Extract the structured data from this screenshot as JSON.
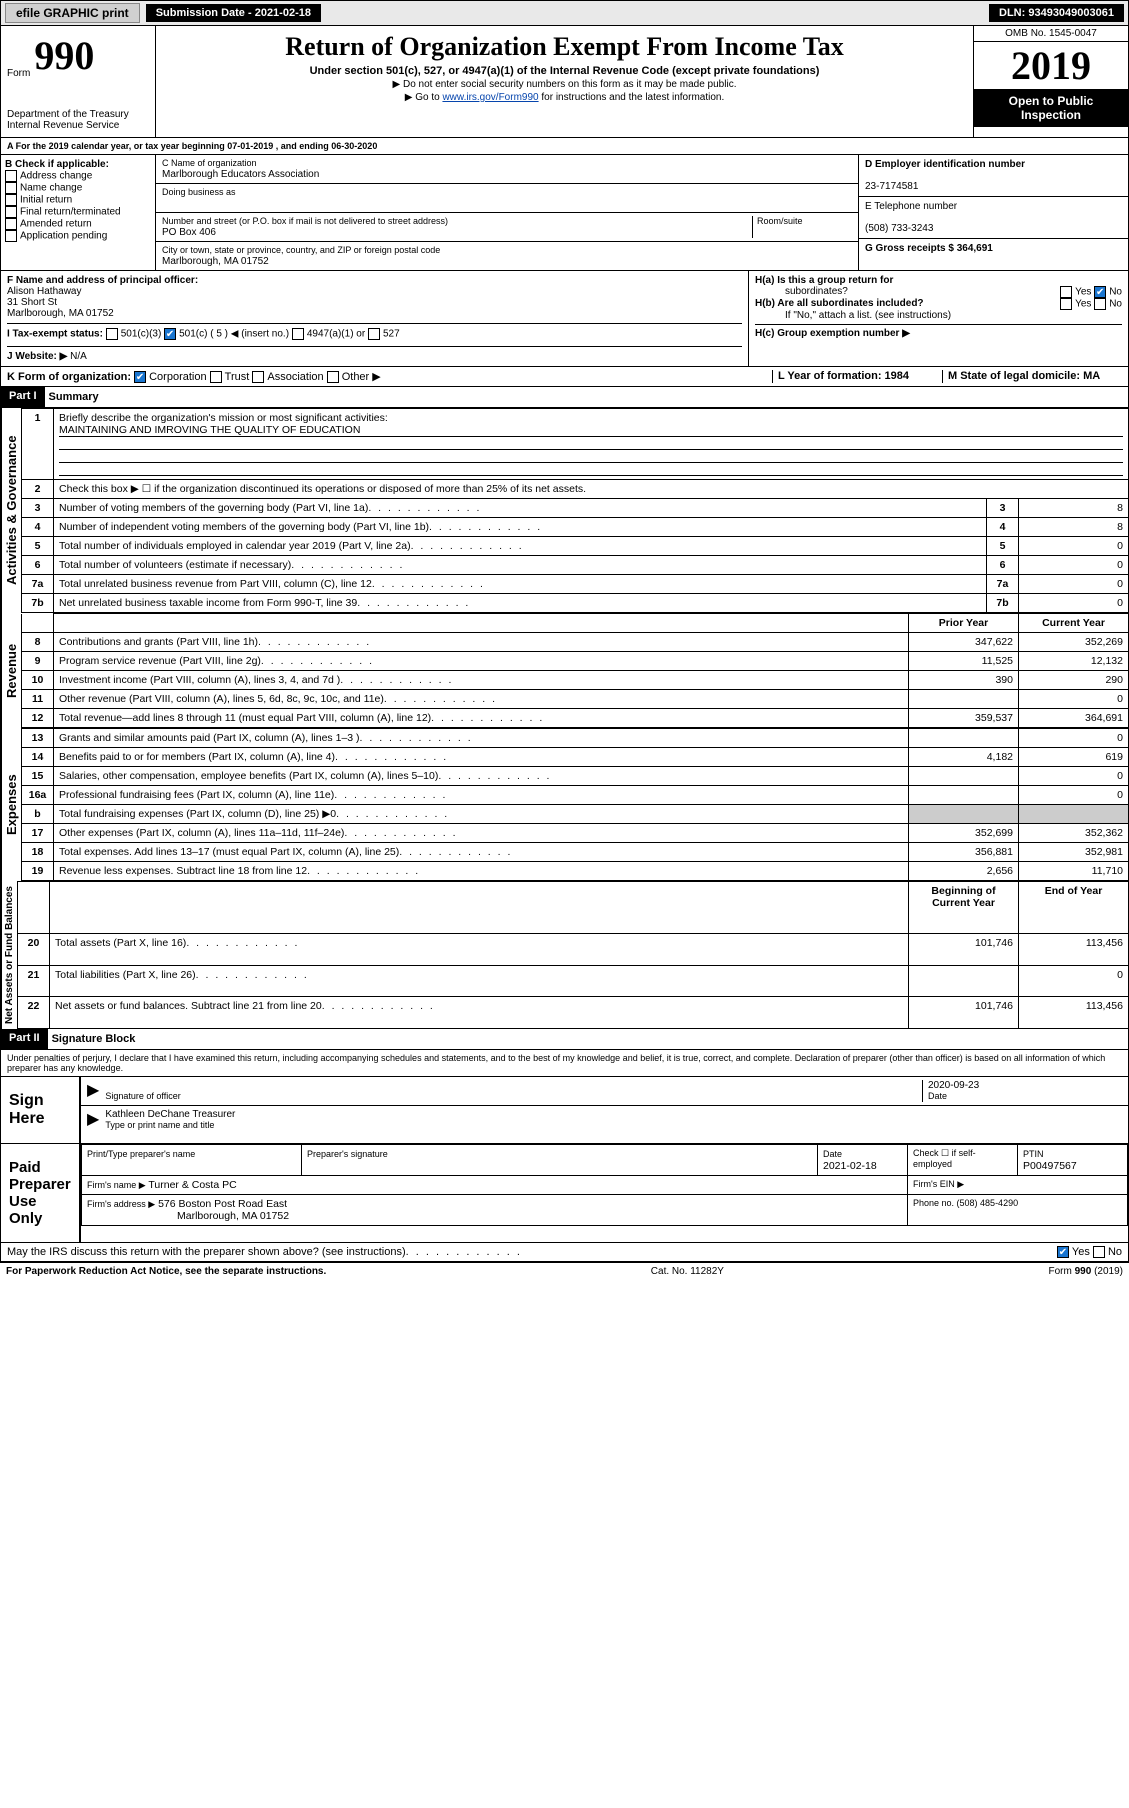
{
  "topbar": {
    "efile": "efile GRAPHIC print",
    "sub_label": "Submission Date - 2021-02-18",
    "dln": "DLN: 93493049003061"
  },
  "header": {
    "form_word": "Form",
    "form_num": "990",
    "dept": "Department of the Treasury\nInternal Revenue Service",
    "title": "Return of Organization Exempt From Income Tax",
    "sub1": "Under section 501(c), 527, or 4947(a)(1) of the Internal Revenue Code (except private foundations)",
    "sub2": "▶ Do not enter social security numbers on this form as it may be made public.",
    "sub3_pre": "▶ Go to ",
    "sub3_link": "www.irs.gov/Form990",
    "sub3_post": " for instructions and the latest information.",
    "omb": "OMB No. 1545-0047",
    "year": "2019",
    "inspect": "Open to Public Inspection"
  },
  "rowA": {
    "text": "A For the 2019 calendar year, or tax year beginning 07-01-2019   , and ending 06-30-2020"
  },
  "sectionB": {
    "b_label": "B Check if applicable:",
    "checks": [
      "Address change",
      "Name change",
      "Initial return",
      "Final return/terminated",
      "Amended return",
      "Application pending"
    ],
    "c_label": "C Name of organization",
    "c_val": "Marlborough Educators Association",
    "dba": "Doing business as",
    "street_label": "Number and street (or P.O. box if mail is not delivered to street address)",
    "street": "PO Box 406",
    "room": "Room/suite",
    "city_label": "City or town, state or province, country, and ZIP or foreign postal code",
    "city": "Marlborough, MA  01752",
    "d_label": "D Employer identification number",
    "d_val": "23-7174581",
    "e_label": "E Telephone number",
    "e_val": "(508) 733-3243",
    "g_label": "G Gross receipts $ 364,691"
  },
  "sectionFH": {
    "f_label": "F  Name and address of principal officer:",
    "f_name": "Alison Hathaway",
    "f_addr1": "31 Short St",
    "f_addr2": "Marlborough, MA  01752",
    "i_label": "I   Tax-exempt status:",
    "i_opts": [
      "501(c)(3)",
      "501(c) ( 5 ) ◀ (insert no.)",
      "4947(a)(1) or",
      "527"
    ],
    "j_label": "J   Website: ▶",
    "j_val": "  N/A",
    "ha": "H(a)  Is this a group return for",
    "ha2": "subordinates?",
    "ha_yes": "Yes",
    "ha_no": "No",
    "hb": "H(b)  Are all subordinates included?",
    "hb_note": "If \"No,\" attach a list. (see instructions)",
    "hc": "H(c)  Group exemption number ▶"
  },
  "rowK": {
    "k_label": "K Form of organization:",
    "k_opts": [
      "Corporation",
      "Trust",
      "Association",
      "Other ▶"
    ],
    "l_label": "L Year of formation: 1984",
    "m_label": "M State of legal domicile: MA"
  },
  "part1": {
    "hdr": "Part I",
    "title": "Summary",
    "q1": "Briefly describe the organization's mission or most significant activities:",
    "q1v": "MAINTAINING AND IMROVING THE QUALITY OF EDUCATION",
    "q2": "Check this box ▶ ☐  if the organization discontinued its operations or disposed of more than 25% of its net assets.",
    "rows_gov": [
      {
        "n": "3",
        "t": "Number of voting members of the governing body (Part VI, line 1a)",
        "v": "8"
      },
      {
        "n": "4",
        "t": "Number of independent voting members of the governing body (Part VI, line 1b)",
        "v": "8"
      },
      {
        "n": "5",
        "t": "Total number of individuals employed in calendar year 2019 (Part V, line 2a)",
        "v": "0"
      },
      {
        "n": "6",
        "t": "Total number of volunteers (estimate if necessary)",
        "v": "0"
      },
      {
        "n": "7a",
        "t": "Total unrelated business revenue from Part VIII, column (C), line 12",
        "v": "0"
      },
      {
        "n": "7b",
        "t": "Net unrelated business taxable income from Form 990-T, line 39",
        "v": "0"
      }
    ],
    "col_prior": "Prior Year",
    "col_current": "Current Year",
    "rows_rev": [
      {
        "n": "8",
        "t": "Contributions and grants (Part VIII, line 1h)",
        "p": "347,622",
        "c": "352,269"
      },
      {
        "n": "9",
        "t": "Program service revenue (Part VIII, line 2g)",
        "p": "11,525",
        "c": "12,132"
      },
      {
        "n": "10",
        "t": "Investment income (Part VIII, column (A), lines 3, 4, and 7d )",
        "p": "390",
        "c": "290"
      },
      {
        "n": "11",
        "t": "Other revenue (Part VIII, column (A), lines 5, 6d, 8c, 9c, 10c, and 11e)",
        "p": "",
        "c": "0"
      },
      {
        "n": "12",
        "t": "Total revenue—add lines 8 through 11 (must equal Part VIII, column (A), line 12)",
        "p": "359,537",
        "c": "364,691"
      }
    ],
    "rows_exp": [
      {
        "n": "13",
        "t": "Grants and similar amounts paid (Part IX, column (A), lines 1–3 )",
        "p": "",
        "c": "0"
      },
      {
        "n": "14",
        "t": "Benefits paid to or for members (Part IX, column (A), line 4)",
        "p": "4,182",
        "c": "619"
      },
      {
        "n": "15",
        "t": "Salaries, other compensation, employee benefits (Part IX, column (A), lines 5–10)",
        "p": "",
        "c": "0"
      },
      {
        "n": "16a",
        "t": "Professional fundraising fees (Part IX, column (A), line 11e)",
        "p": "",
        "c": "0"
      },
      {
        "n": "b",
        "t": "Total fundraising expenses (Part IX, column (D), line 25) ▶0",
        "p": "shaded",
        "c": "shaded"
      },
      {
        "n": "17",
        "t": "Other expenses (Part IX, column (A), lines 11a–11d, 11f–24e)",
        "p": "352,699",
        "c": "352,362"
      },
      {
        "n": "18",
        "t": "Total expenses. Add lines 13–17 (must equal Part IX, column (A), line 25)",
        "p": "356,881",
        "c": "352,981"
      },
      {
        "n": "19",
        "t": "Revenue less expenses. Subtract line 18 from line 12",
        "p": "2,656",
        "c": "11,710"
      }
    ],
    "col_beg": "Beginning of Current Year",
    "col_end": "End of Year",
    "rows_net": [
      {
        "n": "20",
        "t": "Total assets (Part X, line 16)",
        "p": "101,746",
        "c": "113,456"
      },
      {
        "n": "21",
        "t": "Total liabilities (Part X, line 26)",
        "p": "",
        "c": "0"
      },
      {
        "n": "22",
        "t": "Net assets or fund balances. Subtract line 21 from line 20",
        "p": "101,746",
        "c": "113,456"
      }
    ],
    "vlabels": {
      "gov": "Activities & Governance",
      "rev": "Revenue",
      "exp": "Expenses",
      "net": "Net Assets or Fund Balances"
    }
  },
  "part2": {
    "hdr": "Part II",
    "title": "Signature Block",
    "decl": "Under penalties of perjury, I declare that I have examined this return, including accompanying schedules and statements, and to the best of my knowledge and belief, it is true, correct, and complete. Declaration of preparer (other than officer) is based on all information of which preparer has any knowledge.",
    "sign_here": "Sign Here",
    "sig_officer": "Signature of officer",
    "sig_date": "2020-09-23",
    "date_lbl": "Date",
    "typed": "Kathleen DeChane  Treasurer",
    "typed_lbl": "Type or print name and title",
    "paid": "Paid Preparer Use Only",
    "prep_name_lbl": "Print/Type preparer's name",
    "prep_sig_lbl": "Preparer's signature",
    "prep_date_lbl": "Date",
    "prep_date": "2021-02-18",
    "check_self": "Check ☐ if self-employed",
    "ptin_lbl": "PTIN",
    "ptin": "P00497567",
    "firm_name_lbl": "Firm's name   ▶",
    "firm_name": "Turner & Costa PC",
    "firm_ein_lbl": "Firm's EIN ▶",
    "firm_addr_lbl": "Firm's address ▶",
    "firm_addr1": "576 Boston Post Road East",
    "firm_addr2": "Marlborough, MA  01752",
    "phone_lbl": "Phone no. (508) 485-4290",
    "irs_q": "May the IRS discuss this return with the preparer shown above? (see instructions)",
    "yes": "Yes",
    "no": "No"
  },
  "footer": {
    "l": "For Paperwork Reduction Act Notice, see the separate instructions.",
    "m": "Cat. No. 11282Y",
    "r": "Form 990 (2019)"
  }
}
